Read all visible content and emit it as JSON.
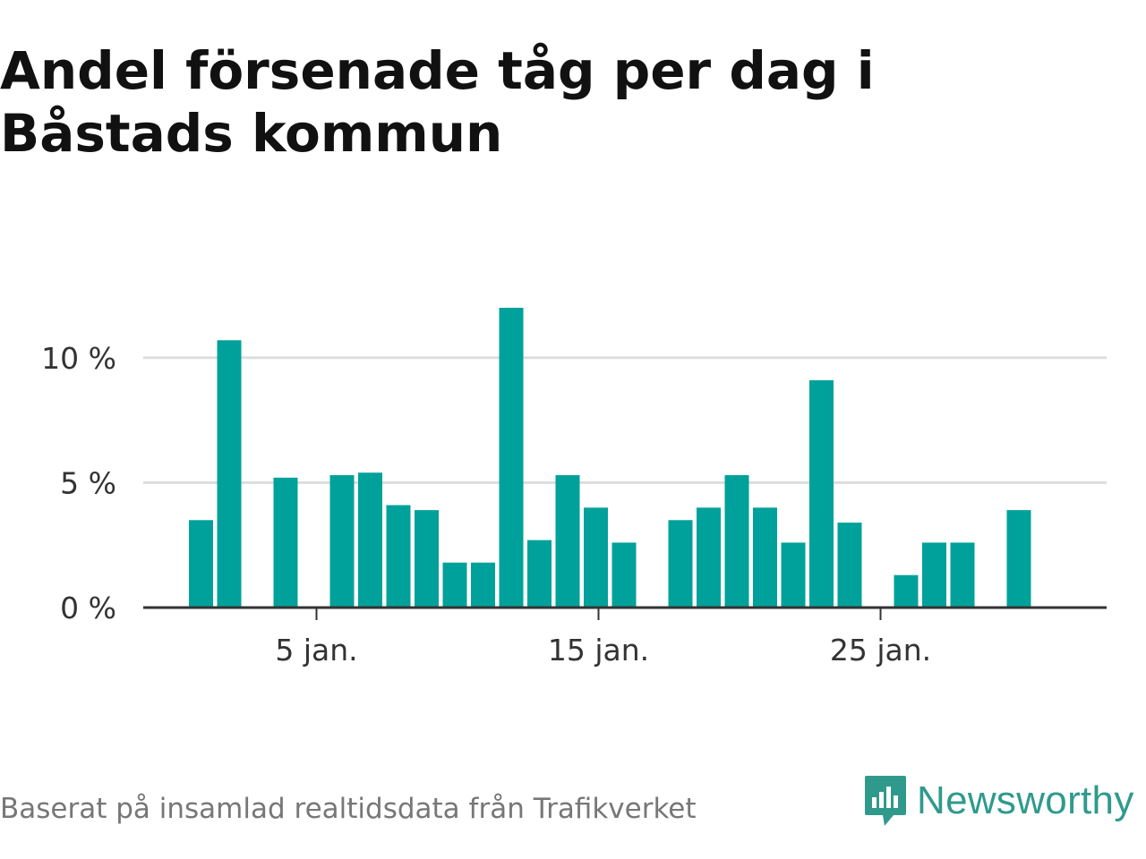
{
  "title": "Andel försenade tåg per dag i Båstads kommun",
  "footer": "Baserat på insamlad realtidsdata från Trafikverket",
  "brand": {
    "name": "Newsworthy",
    "icon": "newsworthy-logo-icon",
    "color": "#2f9a8c"
  },
  "colors": {
    "bar": "#00a19a",
    "grid": "#dddddd",
    "axis": "#333333"
  },
  "chart_data": {
    "type": "bar",
    "xlabel": "",
    "ylabel": "",
    "x": [
      1,
      2,
      3,
      4,
      5,
      6,
      7,
      8,
      9,
      10,
      11,
      12,
      13,
      14,
      15,
      16,
      17,
      18,
      19,
      20,
      21,
      22,
      23,
      24,
      25,
      26,
      27,
      28,
      29,
      30,
      31
    ],
    "values": [
      3.5,
      10.7,
      null,
      5.2,
      null,
      5.3,
      5.4,
      4.1,
      3.9,
      1.8,
      1.8,
      12.0,
      2.7,
      5.3,
      4.0,
      2.6,
      null,
      3.5,
      4.0,
      5.3,
      4.0,
      2.6,
      9.1,
      3.4,
      null,
      1.3,
      2.6,
      2.6,
      null,
      3.9,
      null
    ],
    "ylim": [
      0,
      12.5
    ],
    "yticks": [
      {
        "value": 0,
        "label": "0 %"
      },
      {
        "value": 5,
        "label": "5 %"
      },
      {
        "value": 10,
        "label": "10 %"
      }
    ],
    "xticks": [
      {
        "value": 5,
        "label": "5 jan."
      },
      {
        "value": 15,
        "label": "15 jan."
      },
      {
        "value": 25,
        "label": "25 jan."
      }
    ],
    "grid": true,
    "legend": "none"
  }
}
